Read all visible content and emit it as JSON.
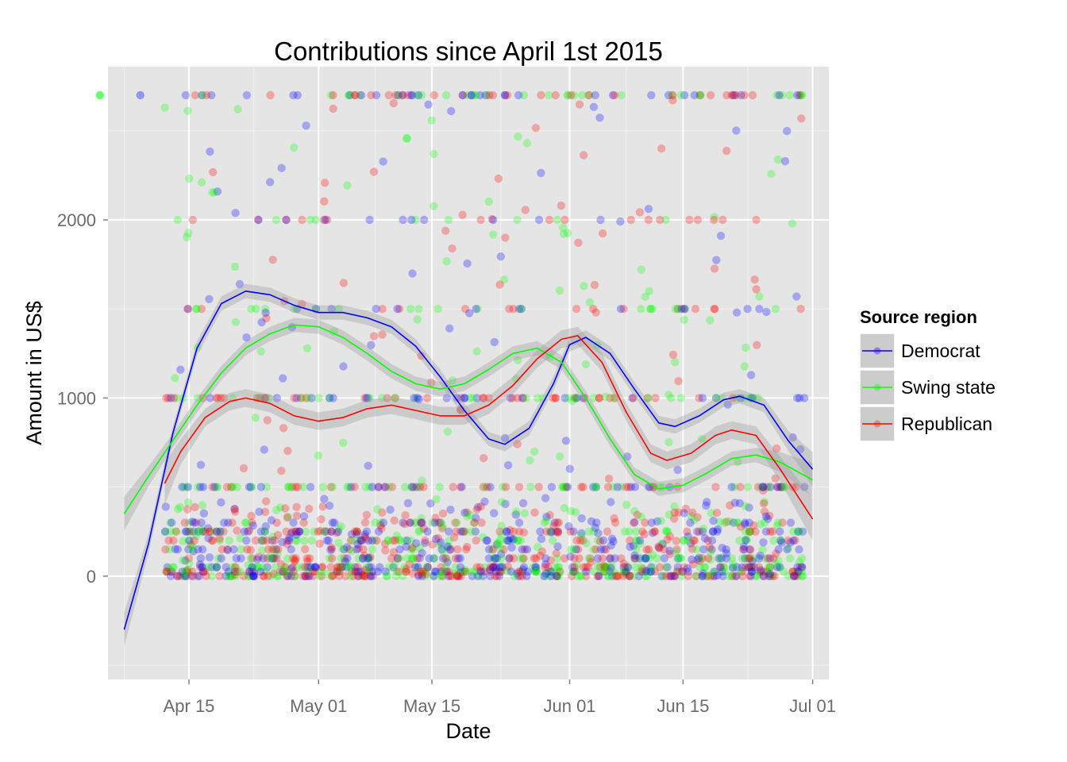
{
  "chart_data": {
    "type": "scatter",
    "title": "Contributions since April 1st 2015",
    "xlabel": "Date",
    "ylabel": "Amount in US$",
    "xlim": [
      "2015-04-05",
      "2015-07-03"
    ],
    "ylim": [
      -580,
      2860
    ],
    "x_ticks": [
      {
        "date": "2015-04-15",
        "label": "Apr 15"
      },
      {
        "date": "2015-05-01",
        "label": "May 01"
      },
      {
        "date": "2015-05-15",
        "label": "May 15"
      },
      {
        "date": "2015-06-01",
        "label": "Jun 01"
      },
      {
        "date": "2015-06-15",
        "label": "Jun 15"
      },
      {
        "date": "2015-07-01",
        "label": "Jul 01"
      }
    ],
    "y_ticks": [
      0,
      1000,
      2000
    ],
    "grid": true,
    "background": "#e5e5e5",
    "legend": {
      "title": "Source region",
      "placement": "right",
      "entries": [
        {
          "label": "Democrat",
          "color": "#0000ff"
        },
        {
          "label": "Swing state",
          "color": "#00ff00"
        },
        {
          "label": "Republican",
          "color": "#ff0000"
        }
      ]
    },
    "point_levels": [
      0,
      25,
      50,
      100,
      150,
      200,
      250,
      300,
      500,
      1000,
      1500,
      2000,
      2700
    ],
    "point_date_range": [
      "2015-04-12",
      "2015-06-30"
    ],
    "smooth_series": [
      {
        "name": "Democrat",
        "color": "#0000ff",
        "points": [
          [
            "2015-04-07",
            -300
          ],
          [
            "2015-04-10",
            180
          ],
          [
            "2015-04-13",
            800
          ],
          [
            "2015-04-16",
            1280
          ],
          [
            "2015-04-19",
            1530
          ],
          [
            "2015-04-22",
            1600
          ],
          [
            "2015-04-25",
            1580
          ],
          [
            "2015-04-28",
            1520
          ],
          [
            "2015-05-01",
            1480
          ],
          [
            "2015-05-04",
            1480
          ],
          [
            "2015-05-07",
            1450
          ],
          [
            "2015-05-10",
            1400
          ],
          [
            "2015-05-13",
            1290
          ],
          [
            "2015-05-16",
            1120
          ],
          [
            "2015-05-19",
            930
          ],
          [
            "2015-05-22",
            770
          ],
          [
            "2015-05-24",
            740
          ],
          [
            "2015-05-27",
            830
          ],
          [
            "2015-05-30",
            1080
          ],
          [
            "2015-06-01",
            1300
          ],
          [
            "2015-06-03",
            1340
          ],
          [
            "2015-06-06",
            1250
          ],
          [
            "2015-06-09",
            1050
          ],
          [
            "2015-06-12",
            860
          ],
          [
            "2015-06-14",
            840
          ],
          [
            "2015-06-17",
            900
          ],
          [
            "2015-06-20",
            990
          ],
          [
            "2015-06-22",
            1010
          ],
          [
            "2015-06-25",
            960
          ],
          [
            "2015-06-28",
            760
          ],
          [
            "2015-07-01",
            600
          ]
        ],
        "band": 40
      },
      {
        "name": "Swing state",
        "color": "#00ff00",
        "points": [
          [
            "2015-04-07",
            350
          ],
          [
            "2015-04-10",
            560
          ],
          [
            "2015-04-13",
            760
          ],
          [
            "2015-04-16",
            960
          ],
          [
            "2015-04-19",
            1140
          ],
          [
            "2015-04-22",
            1280
          ],
          [
            "2015-04-25",
            1360
          ],
          [
            "2015-04-28",
            1410
          ],
          [
            "2015-05-01",
            1400
          ],
          [
            "2015-05-04",
            1340
          ],
          [
            "2015-05-07",
            1250
          ],
          [
            "2015-05-10",
            1150
          ],
          [
            "2015-05-13",
            1080
          ],
          [
            "2015-05-16",
            1050
          ],
          [
            "2015-05-19",
            1080
          ],
          [
            "2015-05-22",
            1160
          ],
          [
            "2015-05-25",
            1250
          ],
          [
            "2015-05-28",
            1280
          ],
          [
            "2015-05-31",
            1200
          ],
          [
            "2015-06-03",
            1000
          ],
          [
            "2015-06-06",
            770
          ],
          [
            "2015-06-09",
            570
          ],
          [
            "2015-06-12",
            490
          ],
          [
            "2015-06-15",
            510
          ],
          [
            "2015-06-18",
            580
          ],
          [
            "2015-06-21",
            660
          ],
          [
            "2015-06-24",
            680
          ],
          [
            "2015-06-27",
            640
          ],
          [
            "2015-07-01",
            540
          ]
        ],
        "band": 40
      },
      {
        "name": "Republican",
        "color": "#ff0000",
        "points": [
          [
            "2015-04-12",
            520
          ],
          [
            "2015-04-14",
            700
          ],
          [
            "2015-04-17",
            890
          ],
          [
            "2015-04-20",
            980
          ],
          [
            "2015-04-22",
            1000
          ],
          [
            "2015-04-25",
            970
          ],
          [
            "2015-04-28",
            900
          ],
          [
            "2015-05-01",
            870
          ],
          [
            "2015-05-04",
            890
          ],
          [
            "2015-05-07",
            940
          ],
          [
            "2015-05-10",
            960
          ],
          [
            "2015-05-13",
            930
          ],
          [
            "2015-05-16",
            900
          ],
          [
            "2015-05-19",
            900
          ],
          [
            "2015-05-22",
            960
          ],
          [
            "2015-05-25",
            1070
          ],
          [
            "2015-05-28",
            1220
          ],
          [
            "2015-05-31",
            1330
          ],
          [
            "2015-06-02",
            1350
          ],
          [
            "2015-06-05",
            1200
          ],
          [
            "2015-06-08",
            920
          ],
          [
            "2015-06-11",
            690
          ],
          [
            "2015-06-13",
            650
          ],
          [
            "2015-06-16",
            690
          ],
          [
            "2015-06-19",
            790
          ],
          [
            "2015-06-21",
            820
          ],
          [
            "2015-06-24",
            790
          ],
          [
            "2015-06-27",
            600
          ],
          [
            "2015-07-01",
            320
          ]
        ],
        "band": 50
      }
    ]
  }
}
